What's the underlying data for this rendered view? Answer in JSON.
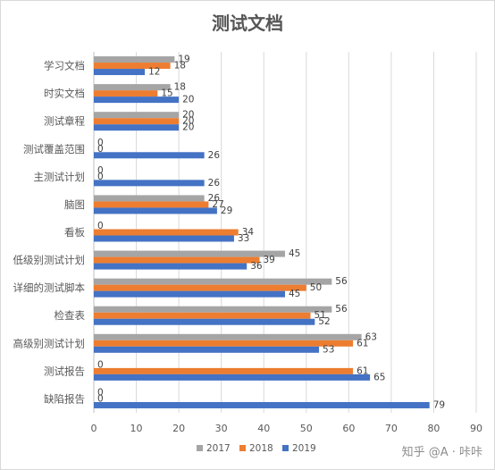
{
  "chart_data": {
    "type": "bar",
    "orientation": "horizontal",
    "title": "测试文档",
    "categories": [
      "学习文档",
      "时实文档",
      "测试章程",
      "测试覆盖范围",
      "主测试计划",
      "脑图",
      "看板",
      "低级别测试计划",
      "详细的测试脚本",
      "检查表",
      "高级别测试计划",
      "测试报告",
      "缺陷报告"
    ],
    "series": [
      {
        "name": "2017",
        "color": "#a5a5a5",
        "values": [
          19,
          18,
          20,
          0,
          0,
          26,
          0,
          45,
          56,
          56,
          63,
          0,
          0
        ]
      },
      {
        "name": "2018",
        "color": "#ed7d31",
        "values": [
          18,
          15,
          20,
          0,
          0,
          27,
          34,
          39,
          50,
          51,
          61,
          61,
          0
        ]
      },
      {
        "name": "2019",
        "color": "#4472c4",
        "values": [
          12,
          20,
          20,
          26,
          26,
          29,
          33,
          36,
          45,
          52,
          53,
          65,
          79
        ]
      }
    ],
    "xlim": [
      0,
      90
    ],
    "xticks": [
      0,
      10,
      20,
      30,
      40,
      50,
      60,
      70,
      80,
      90
    ],
    "grid": true,
    "legend_position": "bottom",
    "data_labels": true
  },
  "watermark": "知乎 @A · 咔咔"
}
